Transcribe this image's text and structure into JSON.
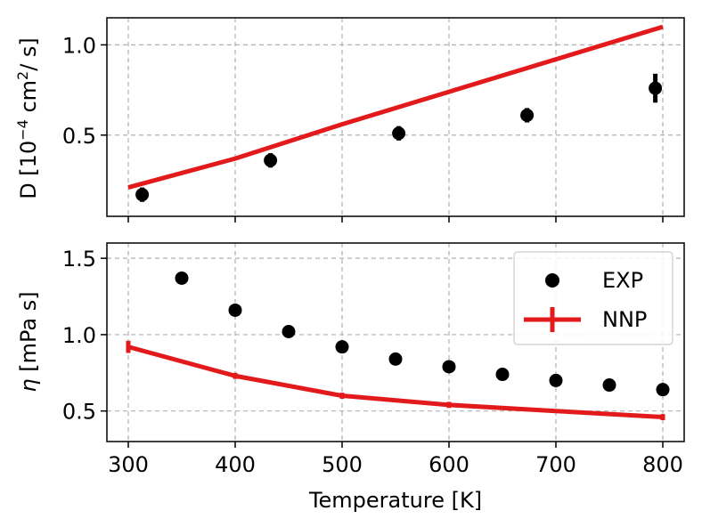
{
  "chart_data": [
    {
      "type": "scatter",
      "panel": "top",
      "ylabel_main": "D [10",
      "ylabel_exp": "−4",
      "ylabel_mid": " cm",
      "ylabel_sq": "2",
      "ylabel_end": "/ s]",
      "xlim": [
        280,
        820
      ],
      "ylim": [
        0.05,
        1.15
      ],
      "yticks": [
        0.5,
        1.0
      ],
      "ytick_labels": [
        "0.5",
        "1.0"
      ],
      "xticks": [
        300,
        400,
        500,
        600,
        700,
        800
      ],
      "grid": true,
      "series": [
        {
          "name": "EXP",
          "kind": "points",
          "color": "#000000",
          "x": [
            313,
            433,
            553,
            673,
            793
          ],
          "y": [
            0.17,
            0.36,
            0.51,
            0.61,
            0.76
          ],
          "err": [
            0.04,
            0.04,
            0.04,
            0.04,
            0.08
          ]
        },
        {
          "name": "NNP",
          "kind": "line",
          "color": "#e31a1c",
          "x": [
            300,
            400,
            500,
            600,
            700,
            800
          ],
          "y": [
            0.21,
            0.37,
            0.56,
            0.74,
            0.92,
            1.1
          ]
        }
      ]
    },
    {
      "type": "scatter",
      "panel": "bottom",
      "ylabel_symbol": "η",
      "ylabel_rest": " [mPa s]",
      "xlabel": "Temperature [K]",
      "xlim": [
        280,
        820
      ],
      "ylim": [
        0.3,
        1.6
      ],
      "yticks": [
        0.5,
        1.0,
        1.5
      ],
      "ytick_labels": [
        "0.5",
        "1.0",
        "1.5"
      ],
      "xticks": [
        300,
        400,
        500,
        600,
        700,
        800
      ],
      "xtick_labels": [
        "300",
        "400",
        "500",
        "600",
        "700",
        "800"
      ],
      "grid": true,
      "legend": {
        "position": "top-right",
        "entries": [
          {
            "label": "EXP",
            "marker": "dot",
            "color": "#000000"
          },
          {
            "label": "NNP",
            "marker": "errorline",
            "color": "#e31a1c"
          }
        ]
      },
      "series": [
        {
          "name": "EXP",
          "kind": "points",
          "color": "#000000",
          "x": [
            350,
            400,
            450,
            500,
            550,
            600,
            650,
            700,
            750,
            800
          ],
          "y": [
            1.37,
            1.16,
            1.02,
            0.92,
            0.84,
            0.79,
            0.74,
            0.7,
            0.67,
            0.64
          ]
        },
        {
          "name": "NNP",
          "kind": "line",
          "color": "#e31a1c",
          "x": [
            300,
            400,
            500,
            600,
            700,
            800
          ],
          "y": [
            0.92,
            0.73,
            0.6,
            0.54,
            0.5,
            0.46
          ],
          "err": [
            0.04,
            0.02,
            0.02,
            0.02,
            0.01,
            0.02
          ]
        }
      ]
    }
  ]
}
